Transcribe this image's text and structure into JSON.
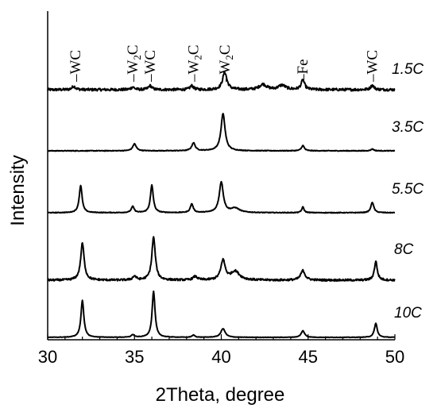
{
  "chart_data": {
    "type": "line",
    "xlabel": "2Theta, degree",
    "ylabel": "Intensity",
    "xlim": [
      30,
      50
    ],
    "x_ticks": [
      30,
      35,
      40,
      45,
      50
    ],
    "y_ticks_shown": false,
    "grid": false,
    "stacked_offset": true,
    "line_color": "#000000",
    "series": [
      {
        "name": "1.5C",
        "baseline": 0,
        "noise": 0.6,
        "peaks": [
          {
            "x": 31.5,
            "h": 0.8,
            "w": 0.12
          },
          {
            "x": 34.9,
            "h": 0.6,
            "w": 0.12
          },
          {
            "x": 35.9,
            "h": 0.9,
            "w": 0.12
          },
          {
            "x": 38.3,
            "h": 0.9,
            "w": 0.12
          },
          {
            "x": 40.2,
            "h": 4.0,
            "w": 0.15
          },
          {
            "x": 42.4,
            "h": 1.2,
            "w": 0.25
          },
          {
            "x": 43.5,
            "h": 1.0,
            "w": 0.25
          },
          {
            "x": 44.7,
            "h": 2.2,
            "w": 0.12
          },
          {
            "x": 48.7,
            "h": 1.0,
            "w": 0.12
          }
        ]
      },
      {
        "name": "3.5C",
        "baseline": 0,
        "noise": 0.15,
        "peaks": [
          {
            "x": 35.0,
            "h": 1.6,
            "w": 0.12
          },
          {
            "x": 38.4,
            "h": 1.8,
            "w": 0.12
          },
          {
            "x": 40.1,
            "h": 8.5,
            "w": 0.14
          },
          {
            "x": 44.7,
            "h": 1.2,
            "w": 0.1
          },
          {
            "x": 48.7,
            "h": 0.4,
            "w": 0.1
          }
        ]
      },
      {
        "name": "5.5C",
        "baseline": 0,
        "noise": 0.15,
        "peaks": [
          {
            "x": 31.9,
            "h": 6.2,
            "w": 0.1
          },
          {
            "x": 34.9,
            "h": 1.4,
            "w": 0.1
          },
          {
            "x": 36.0,
            "h": 6.3,
            "w": 0.1
          },
          {
            "x": 38.3,
            "h": 2.0,
            "w": 0.1
          },
          {
            "x": 40.0,
            "h": 7.0,
            "w": 0.14
          },
          {
            "x": 40.8,
            "h": 1.0,
            "w": 0.3
          },
          {
            "x": 44.7,
            "h": 1.3,
            "w": 0.08
          },
          {
            "x": 48.7,
            "h": 2.4,
            "w": 0.1
          }
        ]
      },
      {
        "name": "8C",
        "baseline": 0,
        "noise": 0.45,
        "peaks": [
          {
            "x": 32.0,
            "h": 8.5,
            "w": 0.12
          },
          {
            "x": 35.0,
            "h": 0.9,
            "w": 0.12
          },
          {
            "x": 36.1,
            "h": 9.8,
            "w": 0.12
          },
          {
            "x": 38.5,
            "h": 0.8,
            "w": 0.15
          },
          {
            "x": 40.1,
            "h": 4.5,
            "w": 0.15
          },
          {
            "x": 40.8,
            "h": 2.0,
            "w": 0.3
          },
          {
            "x": 44.7,
            "h": 2.2,
            "w": 0.15
          },
          {
            "x": 48.9,
            "h": 4.3,
            "w": 0.1
          }
        ]
      },
      {
        "name": "10C",
        "baseline": 0,
        "noise": 0.1,
        "peaks": [
          {
            "x": 32.0,
            "h": 8.5,
            "w": 0.1
          },
          {
            "x": 34.9,
            "h": 0.6,
            "w": 0.1
          },
          {
            "x": 36.1,
            "h": 10.5,
            "w": 0.1
          },
          {
            "x": 38.4,
            "h": 0.5,
            "w": 0.1
          },
          {
            "x": 40.1,
            "h": 2.0,
            "w": 0.15
          },
          {
            "x": 44.7,
            "h": 1.5,
            "w": 0.12
          },
          {
            "x": 48.9,
            "h": 3.2,
            "w": 0.1
          }
        ]
      }
    ],
    "peak_annotations": [
      {
        "x": 31.6,
        "label": "WC"
      },
      {
        "x": 34.9,
        "label": "W",
        "sub": "2",
        "suffix": "C"
      },
      {
        "x": 35.9,
        "label": "WC"
      },
      {
        "x": 38.4,
        "label": "W",
        "sub": "2",
        "suffix": "C"
      },
      {
        "x": 40.2,
        "label": "W",
        "sub": "2",
        "suffix": "C"
      },
      {
        "x": 44.7,
        "label": "Fe"
      },
      {
        "x": 48.7,
        "label": "WC"
      }
    ]
  }
}
